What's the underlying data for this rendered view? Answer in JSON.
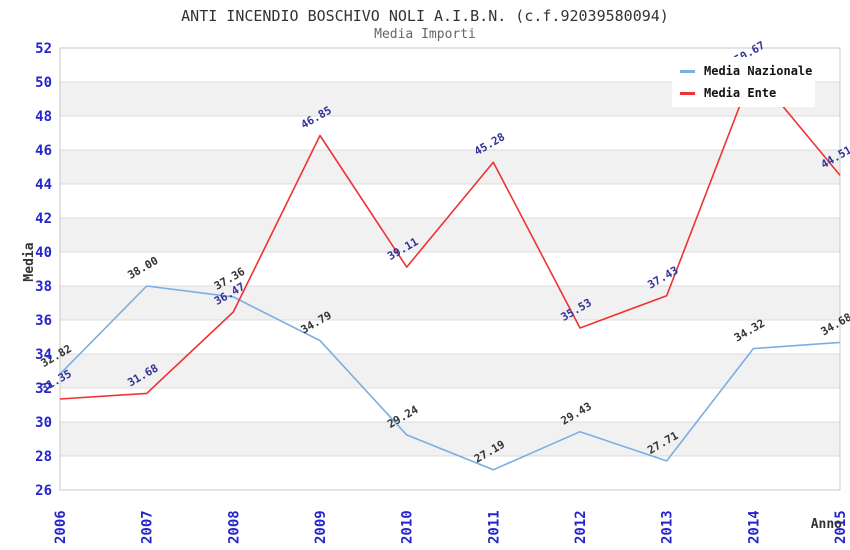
{
  "header": {
    "title": "ANTI INCENDIO BOSCHIVO NOLI A.I.B.N. (c.f.92039580094)",
    "subtitle": "Media Importi"
  },
  "chart_data": {
    "type": "line",
    "x": [
      2006,
      2007,
      2008,
      2009,
      2010,
      2011,
      2012,
      2013,
      2014,
      2015
    ],
    "xlabel": "Anno",
    "ylabel": "Media",
    "ylim": [
      26,
      52
    ],
    "ytick_step": 2,
    "grid": "horizontal-bands",
    "legend_position": "top-right",
    "series": [
      {
        "name": "Media Nazionale",
        "color": "#7aaee4",
        "label_color": "#333333",
        "values": [
          32.82,
          38.0,
          37.36,
          34.79,
          29.24,
          27.19,
          29.43,
          27.71,
          34.32,
          34.68
        ]
      },
      {
        "name": "Media Ente",
        "color": "#ee3333",
        "label_color": "#333399",
        "values": [
          31.35,
          31.68,
          36.47,
          46.85,
          39.11,
          45.28,
          35.53,
          37.43,
          50.67,
          44.51
        ]
      }
    ]
  },
  "colors": {
    "tick_label": "#2525cd",
    "axis_title": "#333333",
    "band": "#f1f1f1",
    "gridline": "#dcdcdc",
    "plot_border": "#c8c8c8"
  }
}
